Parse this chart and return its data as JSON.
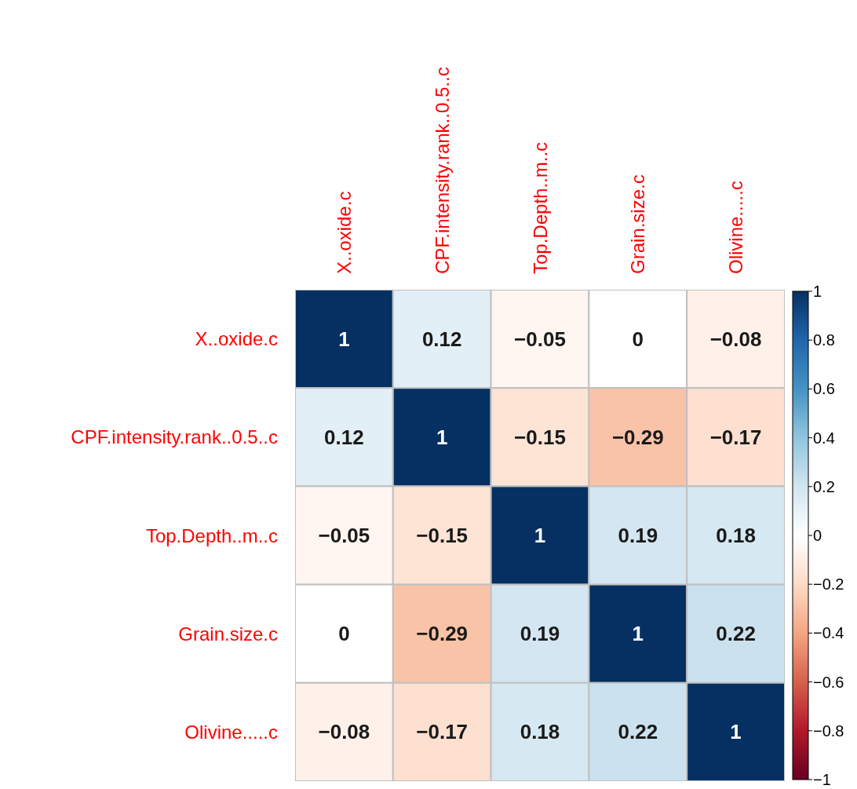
{
  "chart_data": {
    "type": "heatmap",
    "categories": [
      "X..oxide.c",
      "CPF.intensity.rank..0.5..c",
      "Top.Depth..m..c",
      "Grain.size.c",
      "Olivine.....c"
    ],
    "y_categories": [
      "X..oxide.c",
      "CPF.intensity.rank..0.5..c",
      "Top.Depth..m..c",
      "Grain.size.c",
      "Olivine.....c"
    ],
    "cells": [
      [
        1,
        0.12,
        -0.05,
        0,
        -0.08
      ],
      [
        0.12,
        1,
        -0.15,
        -0.29,
        -0.17
      ],
      [
        -0.05,
        -0.15,
        1,
        0.19,
        0.18
      ],
      [
        0,
        -0.29,
        0.19,
        1,
        0.22
      ],
      [
        -0.08,
        -0.17,
        0.18,
        0.22,
        1
      ]
    ],
    "cell_labels": [
      [
        "1",
        "0.12",
        "−0.05",
        "0",
        "−0.08"
      ],
      [
        "0.12",
        "1",
        "−0.15",
        "−0.29",
        "−0.17"
      ],
      [
        "−0.05",
        "−0.15",
        "1",
        "0.19",
        "0.18"
      ],
      [
        "0",
        "−0.29",
        "0.19",
        "1",
        "0.22"
      ],
      [
        "−0.08",
        "−0.17",
        "0.18",
        "0.22",
        "1"
      ]
    ],
    "clim": [
      -1,
      1
    ],
    "cticks": [
      {
        "value": -1,
        "label": "−1"
      },
      {
        "value": -0.8,
        "label": "−0.8"
      },
      {
        "value": -0.6,
        "label": "−0.6"
      },
      {
        "value": -0.4,
        "label": "−0.4"
      },
      {
        "value": -0.2,
        "label": "−0.2"
      },
      0,
      0.2,
      0.4,
      0.6,
      0.8,
      1
    ]
  }
}
